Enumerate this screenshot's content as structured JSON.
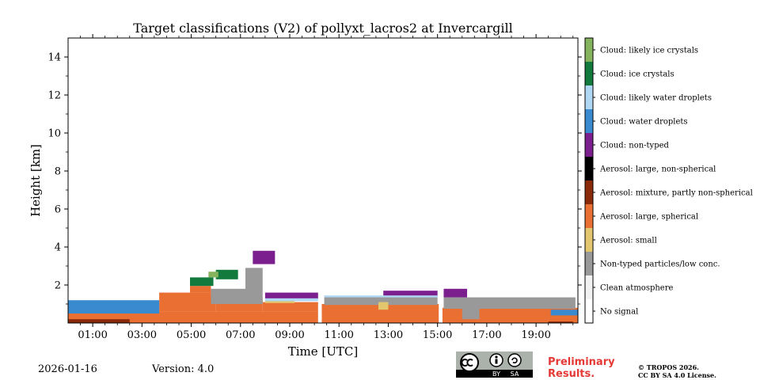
{
  "chart_data": {
    "type": "heatmap",
    "title": "Target classifications (V2) of pollyxt_lacros2 at Invercargill",
    "xlabel": "Time [UTC]",
    "ylabel": "Height [km]",
    "xlim_hours": [
      0,
      20.7
    ],
    "ylim": [
      0,
      15
    ],
    "x_ticks": [
      {
        "label": "01:00",
        "hour": 1
      },
      {
        "label": "03:00",
        "hour": 3
      },
      {
        "label": "05:00",
        "hour": 5
      },
      {
        "label": "07:00",
        "hour": 7
      },
      {
        "label": "09:00",
        "hour": 9
      },
      {
        "label": "11:00",
        "hour": 11
      },
      {
        "label": "13:00",
        "hour": 13
      },
      {
        "label": "15:00",
        "hour": 15
      },
      {
        "label": "17:00",
        "hour": 17
      },
      {
        "label": "19:00",
        "hour": 19
      }
    ],
    "y_ticks": [
      {
        "label": "2",
        "value": 2
      },
      {
        "label": "4",
        "value": 4
      },
      {
        "label": "6",
        "value": 6
      },
      {
        "label": "8",
        "value": 8
      },
      {
        "label": "10",
        "value": 10
      },
      {
        "label": "12",
        "value": 12
      },
      {
        "label": "14",
        "value": 14
      }
    ],
    "classes": [
      {
        "label": "No signal",
        "color": "#ffffff"
      },
      {
        "label": "Clean atmosphere",
        "color": "#f2f2f2"
      },
      {
        "label": "Non-typed particles/low conc.",
        "color": "#999999"
      },
      {
        "label": "Aerosol: small",
        "color": "#e3c76f"
      },
      {
        "label": "Aerosol: large, spherical",
        "color": "#ea6f33"
      },
      {
        "label": "Aerosol: mixture, partly non-spherical",
        "color": "#8a2a0a"
      },
      {
        "label": "Aerosol: large, non-spherical",
        "color": "#000000"
      },
      {
        "label": "Cloud: non-typed",
        "color": "#7b1f8e"
      },
      {
        "label": "Cloud: water droplets",
        "color": "#3a8ad0"
      },
      {
        "label": "Cloud: likely water droplets",
        "color": "#b0d8f5"
      },
      {
        "label": "Cloud: ice crystals",
        "color": "#127a3c"
      },
      {
        "label": "Cloud: likely ice crystals",
        "color": "#86b35e"
      }
    ],
    "regions": [
      {
        "class": 4,
        "t0": 0.0,
        "t1": 10.15,
        "h0": 0.0,
        "h1": 0.6
      },
      {
        "class": 4,
        "t0": 3.7,
        "t1": 6.0,
        "h0": 0.6,
        "h1": 1.6
      },
      {
        "class": 4,
        "t0": 6.0,
        "t1": 7.9,
        "h0": 0.6,
        "h1": 1.3
      },
      {
        "class": 4,
        "t0": 7.9,
        "t1": 10.15,
        "h0": 0.6,
        "h1": 1.1
      },
      {
        "class": 4,
        "t0": 10.3,
        "t1": 15.05,
        "h0": 0.0,
        "h1": 1.0
      },
      {
        "class": 4,
        "t0": 15.2,
        "t1": 20.7,
        "h0": 0.0,
        "h1": 0.8
      },
      {
        "class": 4,
        "t0": 4.95,
        "t1": 5.8,
        "h0": 1.6,
        "h1": 1.95
      },
      {
        "class": 5,
        "t0": 0.0,
        "t1": 2.5,
        "h0": 0.0,
        "h1": 0.2
      },
      {
        "class": 5,
        "t0": 19.5,
        "t1": 20.5,
        "h0": 0.0,
        "h1": 0.08
      },
      {
        "class": 8,
        "t0": 0.0,
        "t1": 3.7,
        "h0": 0.5,
        "h1": 1.2
      },
      {
        "class": 8,
        "t0": 19.6,
        "t1": 20.7,
        "h0": 0.4,
        "h1": 0.7
      },
      {
        "class": 2,
        "t0": 5.8,
        "t1": 7.7,
        "h0": 1.0,
        "h1": 1.8
      },
      {
        "class": 2,
        "t0": 7.2,
        "t1": 7.9,
        "h0": 1.0,
        "h1": 2.9
      },
      {
        "class": 2,
        "t0": 10.4,
        "t1": 15.0,
        "h0": 0.95,
        "h1": 1.4
      },
      {
        "class": 2,
        "t0": 15.25,
        "t1": 20.6,
        "h0": 0.75,
        "h1": 1.35
      },
      {
        "class": 2,
        "t0": 16.0,
        "t1": 16.7,
        "h0": 0.2,
        "h1": 0.75
      },
      {
        "class": 3,
        "t0": 8.0,
        "t1": 9.2,
        "h0": 1.05,
        "h1": 1.25
      },
      {
        "class": 3,
        "t0": 12.6,
        "t1": 13.0,
        "h0": 0.7,
        "h1": 1.1
      },
      {
        "class": 7,
        "t0": 8.0,
        "t1": 10.15,
        "h0": 1.25,
        "h1": 1.6
      },
      {
        "class": 7,
        "t0": 12.8,
        "t1": 15.0,
        "h0": 1.4,
        "h1": 1.7
      },
      {
        "class": 7,
        "t0": 15.25,
        "t1": 16.2,
        "h0": 1.35,
        "h1": 1.8
      },
      {
        "class": 7,
        "t0": 7.5,
        "t1": 8.4,
        "h0": 3.1,
        "h1": 3.8
      },
      {
        "class": 9,
        "t0": 8.0,
        "t1": 10.15,
        "h0": 1.15,
        "h1": 1.3
      },
      {
        "class": 9,
        "t0": 10.4,
        "t1": 15.0,
        "h0": 1.35,
        "h1": 1.45
      },
      {
        "class": 10,
        "t0": 4.95,
        "t1": 5.9,
        "h0": 1.95,
        "h1": 2.4
      },
      {
        "class": 10,
        "t0": 6.0,
        "t1": 6.9,
        "h0": 2.3,
        "h1": 2.8
      },
      {
        "class": 11,
        "t0": 5.7,
        "t1": 6.1,
        "h0": 2.4,
        "h1": 2.7
      }
    ]
  },
  "footer": {
    "date": "2026-01-16",
    "version": "Version: 4.0",
    "license_badge": [
      "BY",
      "SA"
    ],
    "preliminary_line1": "Preliminary",
    "preliminary_line2": "Results.",
    "copyright_line1": "© TROPOS 2026.",
    "copyright_line2": "CC BY SA 4.0 License."
  }
}
